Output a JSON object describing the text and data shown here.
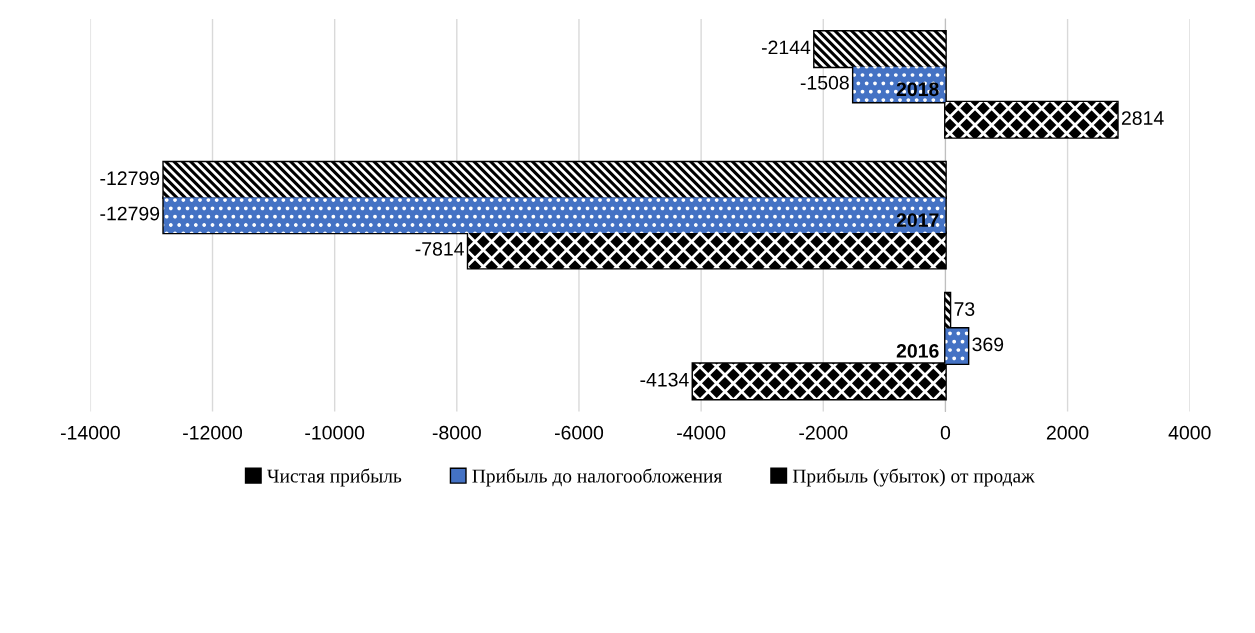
{
  "chart_data": {
    "type": "bar",
    "orientation": "horizontal",
    "categories": [
      "2018",
      "2017",
      "2016"
    ],
    "series": [
      {
        "name": "Чистая прибыль",
        "color": "#000000",
        "values": [
          -2144,
          -12799,
          73
        ]
      },
      {
        "name": "Прибыль до налогообложения",
        "color": "#4472c4",
        "values": [
          -1508,
          -12799,
          369
        ]
      },
      {
        "name": "Прибыль (убыток) от продаж",
        "color": "#000000",
        "values": [
          2814,
          -7814,
          -4134
        ]
      }
    ],
    "xlim": [
      -14000,
      4000
    ],
    "xticks": [
      -14000,
      -12000,
      -10000,
      -8000,
      -6000,
      -4000,
      -2000,
      0,
      2000,
      4000
    ],
    "grid": "x",
    "legend": "bottom",
    "data_labels": true
  }
}
